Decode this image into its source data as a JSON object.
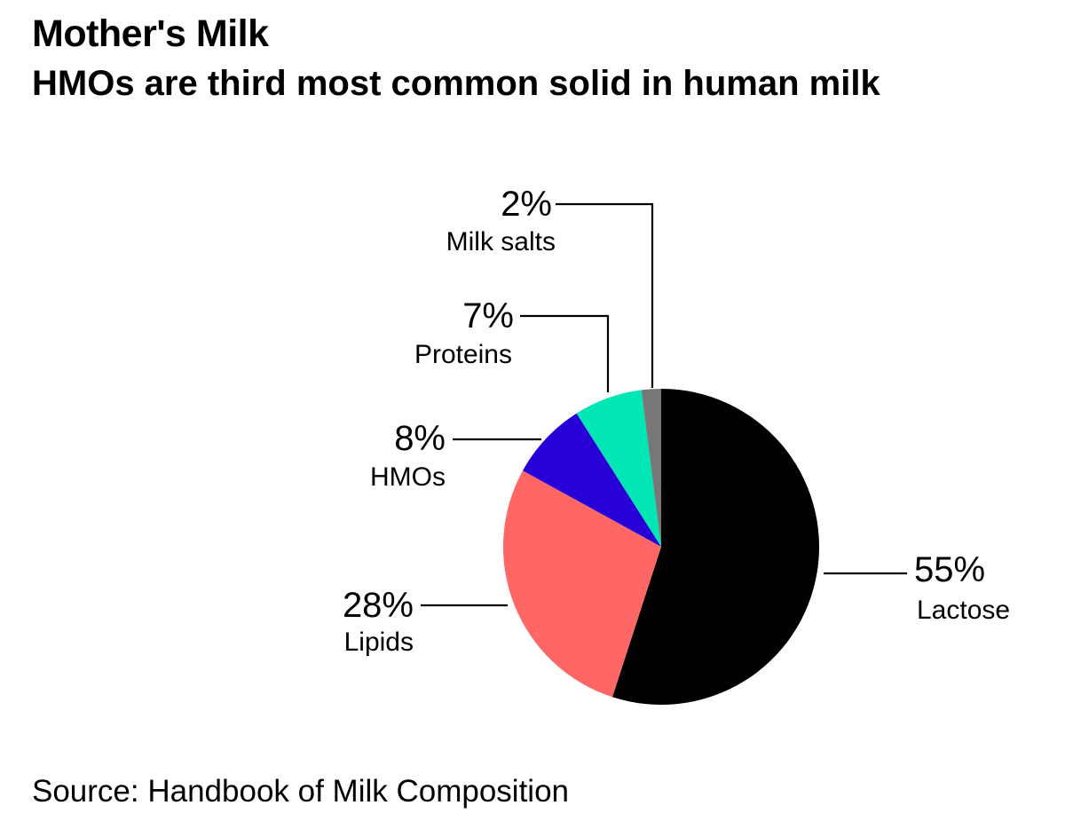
{
  "title": "Mother's Milk",
  "subtitle": "HMOs are third most common solid in human milk",
  "source": "Source: Handbook of Milk Composition",
  "chart_data": {
    "type": "pie",
    "title": "Mother's Milk",
    "subtitle": "HMOs are third most common solid in human milk",
    "start": "12 o'clock",
    "direction": "clockwise",
    "slices": [
      {
        "name": "Lactose",
        "value": 55,
        "label": "55%",
        "color": "#000000"
      },
      {
        "name": "Lipids",
        "value": 28,
        "label": "28%",
        "color": "#FF6666"
      },
      {
        "name": "HMOs",
        "value": 8,
        "label": "8%",
        "color": "#2800D7"
      },
      {
        "name": "Proteins",
        "value": 7,
        "label": "7%",
        "color": "#00E6B4"
      },
      {
        "name": "Milk salts",
        "value": 2,
        "label": "2%",
        "color": "#777777"
      }
    ]
  }
}
